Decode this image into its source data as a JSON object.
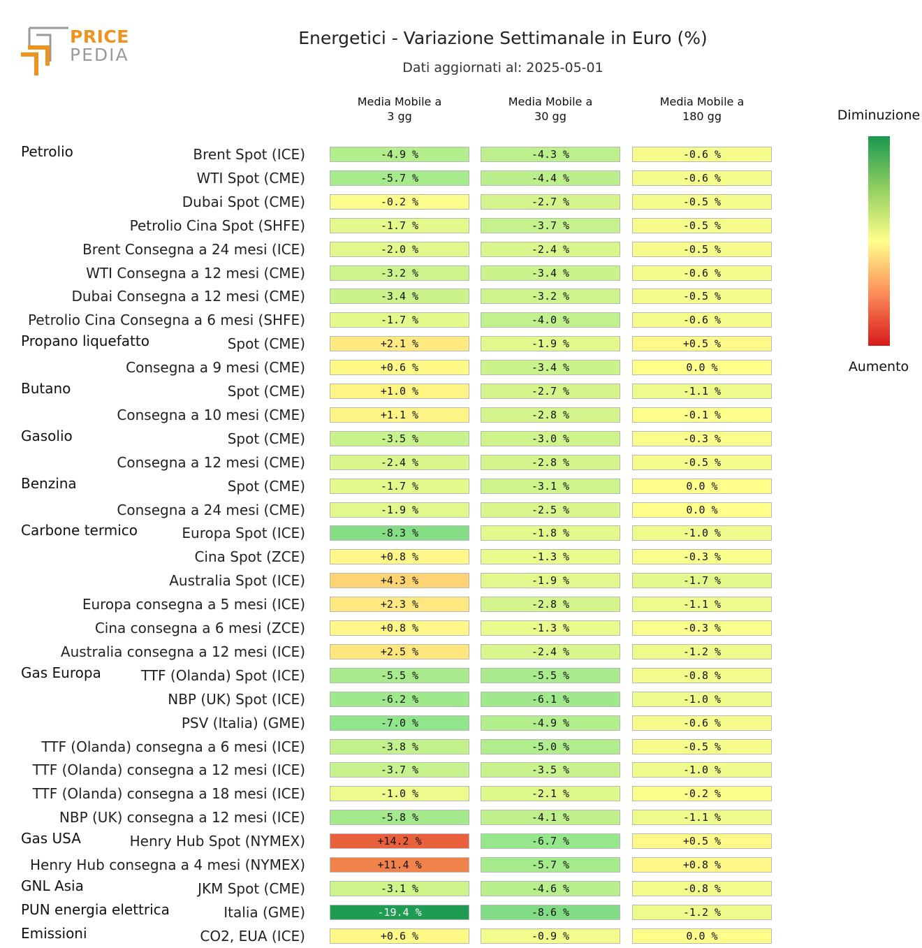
{
  "logo": {
    "word1": "PRICE",
    "word2": "PEDIA",
    "brand_color": "#f0921e",
    "secondary_color": "#9a9a9a"
  },
  "chart_data": {
    "type": "heatmap",
    "title": "Energetici - Variazione Settimanale in Euro (%)",
    "subtitle": "Dati aggiornati al: 2025-05-01",
    "columns": [
      "Media Mobile a\n3 gg",
      "Media Mobile a\n30 gg",
      "Media Mobile a\n180 gg"
    ],
    "legend": {
      "top_label": "Diminuzione",
      "bottom_label": "Aumento",
      "placement": "right"
    },
    "colorscale": {
      "decrease_color": "#1a9850",
      "neutral_color": "#ffff8c",
      "increase_color": "#d7191c"
    },
    "rows": [
      {
        "group": "Petrolio",
        "label": "Brent Spot (ICE)",
        "values": [
          -4.9,
          -4.3,
          -0.6
        ],
        "text": [
          "-4.9 %",
          "-4.3 %",
          "-0.6 %"
        ]
      },
      {
        "group": "",
        "label": "WTI Spot (CME)",
        "values": [
          -5.7,
          -4.4,
          -0.6
        ],
        "text": [
          "-5.7 %",
          "-4.4 %",
          "-0.6 %"
        ]
      },
      {
        "group": "",
        "label": "Dubai Spot (CME)",
        "values": [
          -0.2,
          -2.7,
          -0.5
        ],
        "text": [
          "-0.2 %",
          "-2.7 %",
          "-0.5 %"
        ]
      },
      {
        "group": "",
        "label": "Petrolio Cina Spot (SHFE)",
        "values": [
          -1.7,
          -3.7,
          -0.5
        ],
        "text": [
          "-1.7 %",
          "-3.7 %",
          "-0.5 %"
        ]
      },
      {
        "group": "",
        "label": "Brent Consegna a 24 mesi (ICE)",
        "values": [
          -2.0,
          -2.4,
          -0.5
        ],
        "text": [
          "-2.0 %",
          "-2.4 %",
          "-0.5 %"
        ]
      },
      {
        "group": "",
        "label": "WTI Consegna a 12 mesi (CME)",
        "values": [
          -3.2,
          -3.4,
          -0.6
        ],
        "text": [
          "-3.2 %",
          "-3.4 %",
          "-0.6 %"
        ]
      },
      {
        "group": "",
        "label": "Dubai Consegna a 12 mesi (CME)",
        "values": [
          -3.4,
          -3.2,
          -0.5
        ],
        "text": [
          "-3.4 %",
          "-3.2 %",
          "-0.5 %"
        ]
      },
      {
        "group": "",
        "label": "Petrolio Cina Consegna a 6 mesi (SHFE)",
        "values": [
          -1.7,
          -4.0,
          -0.6
        ],
        "text": [
          "-1.7 %",
          "-4.0 %",
          "-0.6 %"
        ]
      },
      {
        "group": "Propano liquefatto",
        "label": "Spot (CME)",
        "values": [
          2.1,
          -1.9,
          0.5
        ],
        "text": [
          "+2.1 %",
          "-1.9 %",
          "+0.5 %"
        ]
      },
      {
        "group": "",
        "label": "Consegna a 9 mesi (CME)",
        "values": [
          0.6,
          -3.4,
          0.0
        ],
        "text": [
          "+0.6 %",
          "-3.4 %",
          "0.0 %"
        ]
      },
      {
        "group": "Butano",
        "label": "Spot (CME)",
        "values": [
          1.0,
          -2.7,
          -1.1
        ],
        "text": [
          "+1.0 %",
          "-2.7 %",
          "-1.1 %"
        ]
      },
      {
        "group": "",
        "label": "Consegna a 10 mesi (CME)",
        "values": [
          1.1,
          -2.8,
          -0.1
        ],
        "text": [
          "+1.1 %",
          "-2.8 %",
          "-0.1 %"
        ]
      },
      {
        "group": "Gasolio",
        "label": "Spot (CME)",
        "values": [
          -3.5,
          -3.0,
          -0.3
        ],
        "text": [
          "-3.5 %",
          "-3.0 %",
          "-0.3 %"
        ]
      },
      {
        "group": "",
        "label": "Consegna a 12 mesi (CME)",
        "values": [
          -2.4,
          -2.8,
          -0.5
        ],
        "text": [
          "-2.4 %",
          "-2.8 %",
          "-0.5 %"
        ]
      },
      {
        "group": "Benzina",
        "label": "Spot (CME)",
        "values": [
          -1.7,
          -3.1,
          0.0
        ],
        "text": [
          "-1.7 %",
          "-3.1 %",
          "0.0 %"
        ]
      },
      {
        "group": "",
        "label": "Consegna a 24 mesi (CME)",
        "values": [
          -1.9,
          -2.5,
          0.0
        ],
        "text": [
          "-1.9 %",
          "-2.5 %",
          "0.0 %"
        ]
      },
      {
        "group": "Carbone termico",
        "label": "Europa Spot (ICE)",
        "values": [
          -8.3,
          -1.8,
          -1.0
        ],
        "text": [
          "-8.3 %",
          "-1.8 %",
          "-1.0 %"
        ]
      },
      {
        "group": "",
        "label": "Cina Spot (ZCE)",
        "values": [
          0.8,
          -1.3,
          -0.3
        ],
        "text": [
          "+0.8 %",
          "-1.3 %",
          "-0.3 %"
        ]
      },
      {
        "group": "",
        "label": "Australia Spot (ICE)",
        "values": [
          4.3,
          -1.9,
          -1.7
        ],
        "text": [
          "+4.3 %",
          "-1.9 %",
          "-1.7 %"
        ]
      },
      {
        "group": "",
        "label": "Europa consegna a 5 mesi (ICE)",
        "values": [
          2.3,
          -2.8,
          -1.1
        ],
        "text": [
          "+2.3 %",
          "-2.8 %",
          "-1.1 %"
        ]
      },
      {
        "group": "",
        "label": "Cina consegna a 6 mesi (ZCE)",
        "values": [
          0.8,
          -1.3,
          -0.3
        ],
        "text": [
          "+0.8 %",
          "-1.3 %",
          "-0.3 %"
        ]
      },
      {
        "group": "",
        "label": "Australia consegna a 12 mesi (ICE)",
        "values": [
          2.5,
          -2.4,
          -1.2
        ],
        "text": [
          "+2.5 %",
          "-2.4 %",
          "-1.2 %"
        ]
      },
      {
        "group": "Gas Europa",
        "label": "TTF (Olanda) Spot (ICE)",
        "values": [
          -5.5,
          -5.5,
          -0.8
        ],
        "text": [
          "-5.5 %",
          "-5.5 %",
          "-0.8 %"
        ]
      },
      {
        "group": "",
        "label": "NBP (UK) Spot (ICE)",
        "values": [
          -6.2,
          -6.1,
          -1.0
        ],
        "text": [
          "-6.2 %",
          "-6.1 %",
          "-1.0 %"
        ]
      },
      {
        "group": "",
        "label": "PSV (Italia) (GME)",
        "values": [
          -7.0,
          -4.9,
          -0.6
        ],
        "text": [
          "-7.0 %",
          "-4.9 %",
          "-0.6 %"
        ]
      },
      {
        "group": "",
        "label": "TTF (Olanda) consegna a 6 mesi (ICE)",
        "values": [
          -3.8,
          -5.0,
          -0.5
        ],
        "text": [
          "-3.8 %",
          "-5.0 %",
          "-0.5 %"
        ]
      },
      {
        "group": "",
        "label": "TTF (Olanda) consegna a 12 mesi (ICE)",
        "values": [
          -3.7,
          -3.5,
          -1.0
        ],
        "text": [
          "-3.7 %",
          "-3.5 %",
          "-1.0 %"
        ]
      },
      {
        "group": "",
        "label": "TTF (Olanda) consegna a 18 mesi (ICE)",
        "values": [
          -1.0,
          -2.1,
          -0.2
        ],
        "text": [
          "-1.0 %",
          "-2.1 %",
          "-0.2 %"
        ]
      },
      {
        "group": "",
        "label": "NBP (UK) consegna a 12 mesi (ICE)",
        "values": [
          -5.8,
          -4.1,
          -1.1
        ],
        "text": [
          "-5.8 %",
          "-4.1 %",
          "-1.1 %"
        ]
      },
      {
        "group": "Gas USA",
        "label": "Henry Hub Spot (NYMEX)",
        "values": [
          14.2,
          -6.7,
          0.5
        ],
        "text": [
          "+14.2 %",
          "-6.7 %",
          "+0.5 %"
        ]
      },
      {
        "group": "",
        "label": "Henry Hub consegna a 4 mesi (NYMEX)",
        "values": [
          11.4,
          -5.7,
          0.8
        ],
        "text": [
          "+11.4 %",
          "-5.7 %",
          "+0.8 %"
        ]
      },
      {
        "group": "GNL Asia",
        "label": "JKM Spot (CME)",
        "values": [
          -3.1,
          -4.6,
          -0.8
        ],
        "text": [
          "-3.1 %",
          "-4.6 %",
          "-0.8 %"
        ]
      },
      {
        "group": "PUN energia elettrica",
        "label": "Italia (GME)",
        "values": [
          -19.4,
          -8.6,
          -1.2
        ],
        "text": [
          "-19.4 %",
          "-8.6 %",
          "-1.2 %"
        ]
      },
      {
        "group": "Emissioni",
        "label": "CO2, EUA (ICE)",
        "values": [
          0.6,
          -0.9,
          0.0
        ],
        "text": [
          "+0.6 %",
          "-0.9 %",
          "0.0 %"
        ]
      }
    ]
  }
}
